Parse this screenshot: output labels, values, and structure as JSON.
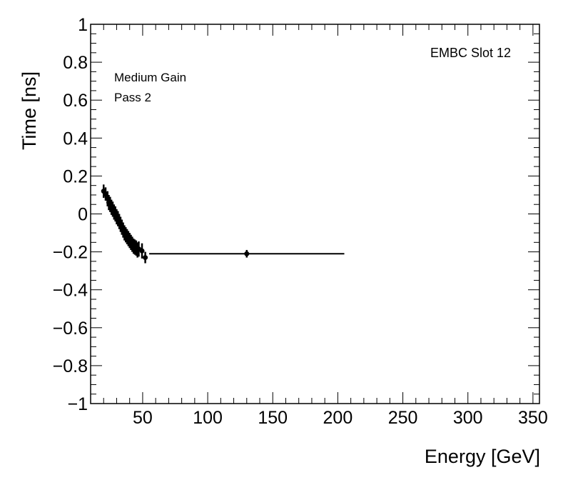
{
  "chart_data": {
    "type": "scatter",
    "title": "",
    "xlabel": "Energy [GeV]",
    "ylabel": "Time [ns]",
    "xlim": [
      10,
      355
    ],
    "ylim": [
      -1,
      1
    ],
    "x_ticks": [
      50,
      100,
      150,
      200,
      250,
      300,
      350
    ],
    "y_ticks": [
      1,
      0.8,
      0.6,
      0.4,
      0.2,
      0,
      -0.2,
      -0.4,
      -0.6,
      -0.8,
      -1
    ],
    "y_tick_labels": [
      "1",
      "0.8",
      "0.6",
      "0.4",
      "0.2",
      "0",
      "−0.2",
      "−0.4",
      "−0.6",
      "−0.8",
      "−1"
    ],
    "grid": false,
    "annotations": {
      "label_right": "EMBC Slot 12",
      "gain": "Medium Gain",
      "pass": "Pass 2"
    },
    "series": [
      {
        "color": "#000000",
        "points": [
          {
            "x": 20.0,
            "y": 0.12,
            "yerr": 0.035
          },
          {
            "x": 21.5,
            "y": 0.105,
            "yerr": 0.035
          },
          {
            "x": 23.0,
            "y": 0.08,
            "yerr": 0.04
          },
          {
            "x": 24.0,
            "y": 0.06,
            "yerr": 0.04
          },
          {
            "x": 25.0,
            "y": 0.05,
            "yerr": 0.04
          },
          {
            "x": 26.0,
            "y": 0.035,
            "yerr": 0.04
          },
          {
            "x": 27.0,
            "y": 0.025,
            "yerr": 0.04
          },
          {
            "x": 28.0,
            "y": 0.01,
            "yerr": 0.04
          },
          {
            "x": 29.0,
            "y": 0.0,
            "yerr": 0.04
          },
          {
            "x": 30.0,
            "y": -0.015,
            "yerr": 0.04
          },
          {
            "x": 31.0,
            "y": -0.025,
            "yerr": 0.04
          },
          {
            "x": 32.0,
            "y": -0.04,
            "yerr": 0.04
          },
          {
            "x": 33.0,
            "y": -0.055,
            "yerr": 0.04
          },
          {
            "x": 34.0,
            "y": -0.07,
            "yerr": 0.04
          },
          {
            "x": 35.0,
            "y": -0.085,
            "yerr": 0.04
          },
          {
            "x": 36.0,
            "y": -0.1,
            "yerr": 0.04
          },
          {
            "x": 37.0,
            "y": -0.11,
            "yerr": 0.04
          },
          {
            "x": 38.0,
            "y": -0.12,
            "yerr": 0.04
          },
          {
            "x": 39.0,
            "y": -0.13,
            "yerr": 0.04
          },
          {
            "x": 40.0,
            "y": -0.14,
            "yerr": 0.04
          },
          {
            "x": 41.0,
            "y": -0.15,
            "yerr": 0.04
          },
          {
            "x": 42.0,
            "y": -0.16,
            "yerr": 0.04
          },
          {
            "x": 43.0,
            "y": -0.17,
            "yerr": 0.04
          },
          {
            "x": 44.0,
            "y": -0.175,
            "yerr": 0.04
          },
          {
            "x": 45.0,
            "y": -0.18,
            "yerr": 0.04
          },
          {
            "x": 46.0,
            "y": -0.19,
            "yerr": 0.04
          },
          {
            "x": 47.0,
            "y": -0.185,
            "yerr": 0.04
          },
          {
            "x": 49.5,
            "y": -0.195,
            "yerr": 0.04
          },
          {
            "x": 52.0,
            "y": -0.23,
            "yerr": 0.03
          },
          {
            "x": 130.0,
            "y": -0.21,
            "yerr": 0.02,
            "xerr": [
              75,
              75
            ]
          }
        ]
      }
    ]
  }
}
